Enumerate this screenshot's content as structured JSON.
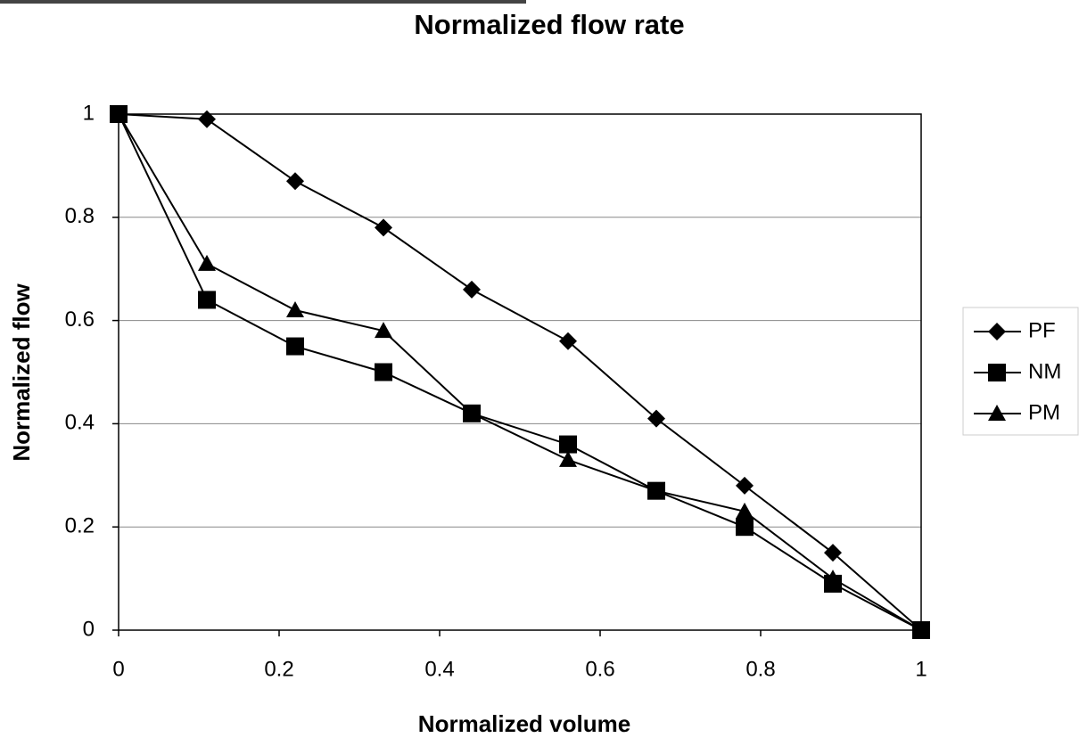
{
  "chart_data": {
    "type": "line",
    "title": "Normalized flow rate",
    "x_label": "Normalized volume",
    "y_label": "Normalized flow",
    "x": [
      0,
      0.11,
      0.22,
      0.33,
      0.44,
      0.56,
      0.67,
      0.78,
      0.89,
      1
    ],
    "series": [
      {
        "name": "PF",
        "color": "#000000",
        "marker": "diamond",
        "values": [
          1,
          0.99,
          0.87,
          0.78,
          0.66,
          0.56,
          0.41,
          0.28,
          0.15,
          0
        ]
      },
      {
        "name": "NM",
        "color": "#000000",
        "marker": "square",
        "values": [
          1,
          0.64,
          0.55,
          0.5,
          0.42,
          0.36,
          0.27,
          0.2,
          0.09,
          0
        ]
      },
      {
        "name": "PM",
        "color": "#000000",
        "marker": "triangle",
        "values": [
          1,
          0.71,
          0.62,
          0.58,
          0.42,
          0.33,
          0.27,
          0.23,
          0.1,
          0
        ]
      }
    ],
    "xlim": [
      0,
      1
    ],
    "ylim": [
      0,
      1
    ],
    "xticks": [
      0,
      0.2,
      0.4,
      0.6,
      0.8,
      1
    ],
    "yticks": [
      0,
      0.2,
      0.4,
      0.6,
      0.8,
      1
    ],
    "grid": true,
    "legend": "right"
  }
}
